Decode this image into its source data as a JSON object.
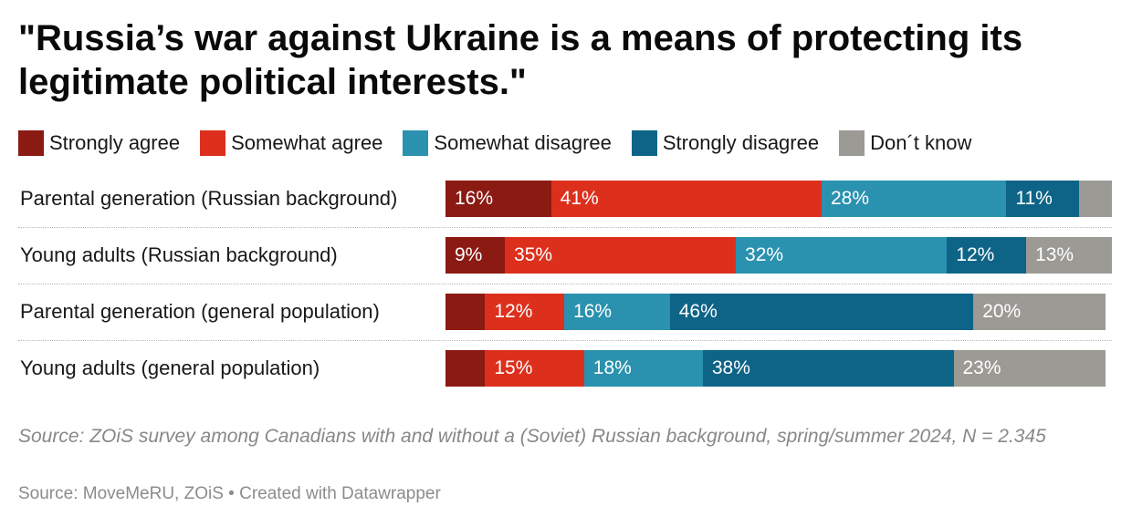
{
  "chart_data": {
    "type": "bar",
    "stacked": true,
    "orientation": "horizontal",
    "title": "\"Russia’s war against Ukraine is a means of protecting its legitimate political interests.\"",
    "categories": [
      "Parental generation (Russian background)",
      "Young adults (Russian background)",
      "Parental generation (general population)",
      "Young adults (general population)"
    ],
    "series": [
      {
        "name": "Strongly agree",
        "color": "#8b1a13",
        "values": [
          16,
          9,
          6,
          6
        ],
        "labels": [
          "16%",
          "9%",
          "",
          ""
        ]
      },
      {
        "name": "Somewhat agree",
        "color": "#dc301d",
        "values": [
          41,
          35,
          12,
          15
        ],
        "labels": [
          "41%",
          "35%",
          "12%",
          "15%"
        ]
      },
      {
        "name": "Somewhat disagree",
        "color": "#2a91ae",
        "values": [
          28,
          32,
          16,
          18
        ],
        "labels": [
          "28%",
          "32%",
          "16%",
          "18%"
        ]
      },
      {
        "name": "Strongly disagree",
        "color": "#0e6487",
        "values": [
          11,
          12,
          46,
          38
        ],
        "labels": [
          "11%",
          "12%",
          "46%",
          "38%"
        ]
      },
      {
        "name": "Don´t know",
        "color": "#9c9a95",
        "values": [
          5,
          13,
          20,
          23
        ],
        "labels": [
          "",
          "13%",
          "20%",
          "23%"
        ]
      }
    ],
    "xlim": [
      0,
      101
    ],
    "legend": "top",
    "notes": "Source: ZOiS survey among Canadians with and without a (Soviet) Russian background, spring/summer 2024, N = 2.345",
    "footer": "Source: MoveMeRU, ZOiS • Created with Datawrapper"
  }
}
